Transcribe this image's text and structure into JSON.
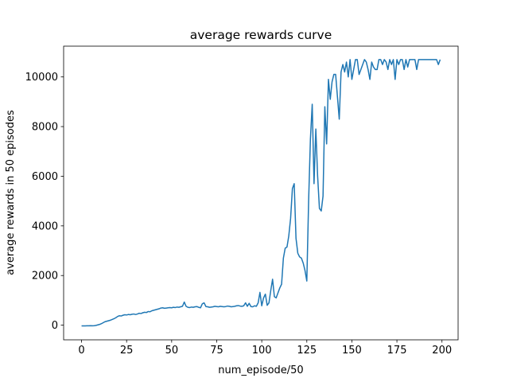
{
  "chart_data": {
    "type": "line",
    "title": "average rewards curve",
    "x_label": "num_episode/50",
    "y_label": "average rewards in 50 episodes",
    "color": "#1f77b4",
    "x": [
      0,
      1,
      2,
      3,
      4,
      5,
      6,
      7,
      8,
      9,
      10,
      11,
      12,
      13,
      14,
      15,
      16,
      17,
      18,
      19,
      20,
      21,
      22,
      23,
      24,
      25,
      26,
      27,
      28,
      29,
      30,
      31,
      32,
      33,
      34,
      35,
      36,
      37,
      38,
      39,
      40,
      41,
      42,
      43,
      44,
      45,
      46,
      47,
      48,
      49,
      50,
      51,
      52,
      53,
      54,
      55,
      56,
      57,
      58,
      59,
      60,
      61,
      62,
      63,
      64,
      65,
      66,
      67,
      68,
      69,
      70,
      71,
      72,
      73,
      74,
      75,
      76,
      77,
      78,
      79,
      80,
      81,
      82,
      83,
      84,
      85,
      86,
      87,
      88,
      89,
      90,
      91,
      92,
      93,
      94,
      95,
      96,
      97,
      98,
      99,
      100,
      101,
      102,
      103,
      104,
      105,
      106,
      107,
      108,
      109,
      110,
      111,
      112,
      113,
      114,
      115,
      116,
      117,
      118,
      119,
      120,
      121,
      122,
      123,
      124,
      125,
      126,
      127,
      128,
      129,
      130,
      131,
      132,
      133,
      134,
      135,
      136,
      137,
      138,
      139,
      140,
      141,
      142,
      143,
      144,
      145,
      146,
      147,
      148,
      149,
      150,
      151,
      152,
      153,
      154,
      155,
      156,
      157,
      158,
      159,
      160,
      161,
      162,
      163,
      164,
      165,
      166,
      167,
      168,
      169,
      170,
      171,
      172,
      173,
      174,
      175,
      176,
      177,
      178,
      179,
      180,
      181,
      182,
      183,
      184,
      185,
      186,
      187,
      188,
      189,
      190,
      191,
      192,
      193,
      194,
      195,
      196,
      197,
      198,
      199
    ],
    "values": [
      -30,
      -30,
      -30,
      -25,
      -25,
      -20,
      -25,
      -20,
      -10,
      10,
      30,
      60,
      100,
      140,
      160,
      180,
      200,
      230,
      260,
      300,
      350,
      380,
      370,
      400,
      420,
      410,
      430,
      420,
      440,
      450,
      430,
      450,
      480,
      470,
      500,
      520,
      510,
      550,
      540,
      580,
      600,
      620,
      640,
      660,
      690,
      700,
      680,
      690,
      700,
      710,
      700,
      720,
      710,
      730,
      720,
      740,
      760,
      930,
      760,
      720,
      710,
      730,
      720,
      740,
      750,
      720,
      700,
      860,
      900,
      750,
      740,
      720,
      730,
      740,
      760,
      750,
      740,
      760,
      750,
      740,
      750,
      770,
      760,
      740,
      750,
      760,
      780,
      790,
      770,
      760,
      780,
      900,
      760,
      880,
      750,
      740,
      780,
      760,
      900,
      1320,
      780,
      1100,
      1250,
      800,
      900,
      1400,
      1850,
      1150,
      1100,
      1300,
      1500,
      1650,
      2700,
      3100,
      3150,
      3600,
      4300,
      5500,
      5700,
      3500,
      2900,
      2750,
      2700,
      2500,
      2200,
      1780,
      5000,
      7500,
      8900,
      5700,
      7900,
      6000,
      4700,
      4600,
      5200,
      8800,
      7300,
      9900,
      9100,
      9800,
      10100,
      10100,
      9200,
      8300,
      10200,
      10500,
      10200,
      10600,
      10000,
      10700,
      9900,
      10300,
      10700,
      10700,
      10100,
      10300,
      10500,
      10700,
      10600,
      10300,
      9900,
      10600,
      10400,
      10300,
      10300,
      10700,
      10700,
      10500,
      10700,
      10600,
      10300,
      10700,
      10500,
      10700,
      9900,
      10700,
      10500,
      10700,
      10700,
      10300,
      10700,
      10400,
      10700,
      10700,
      10700,
      10700,
      10300,
      10700,
      10700,
      10700,
      10700,
      10700,
      10700,
      10700,
      10700,
      10700,
      10700,
      10700,
      10500,
      10700
    ],
    "xlim": [
      -9.95,
      208.95
    ],
    "xticks": [
      0,
      25,
      50,
      75,
      100,
      125,
      150,
      175,
      200
    ],
    "ylim": [
      -590,
      11240
    ],
    "yticks": [
      0,
      2000,
      4000,
      6000,
      8000,
      10000
    ]
  }
}
